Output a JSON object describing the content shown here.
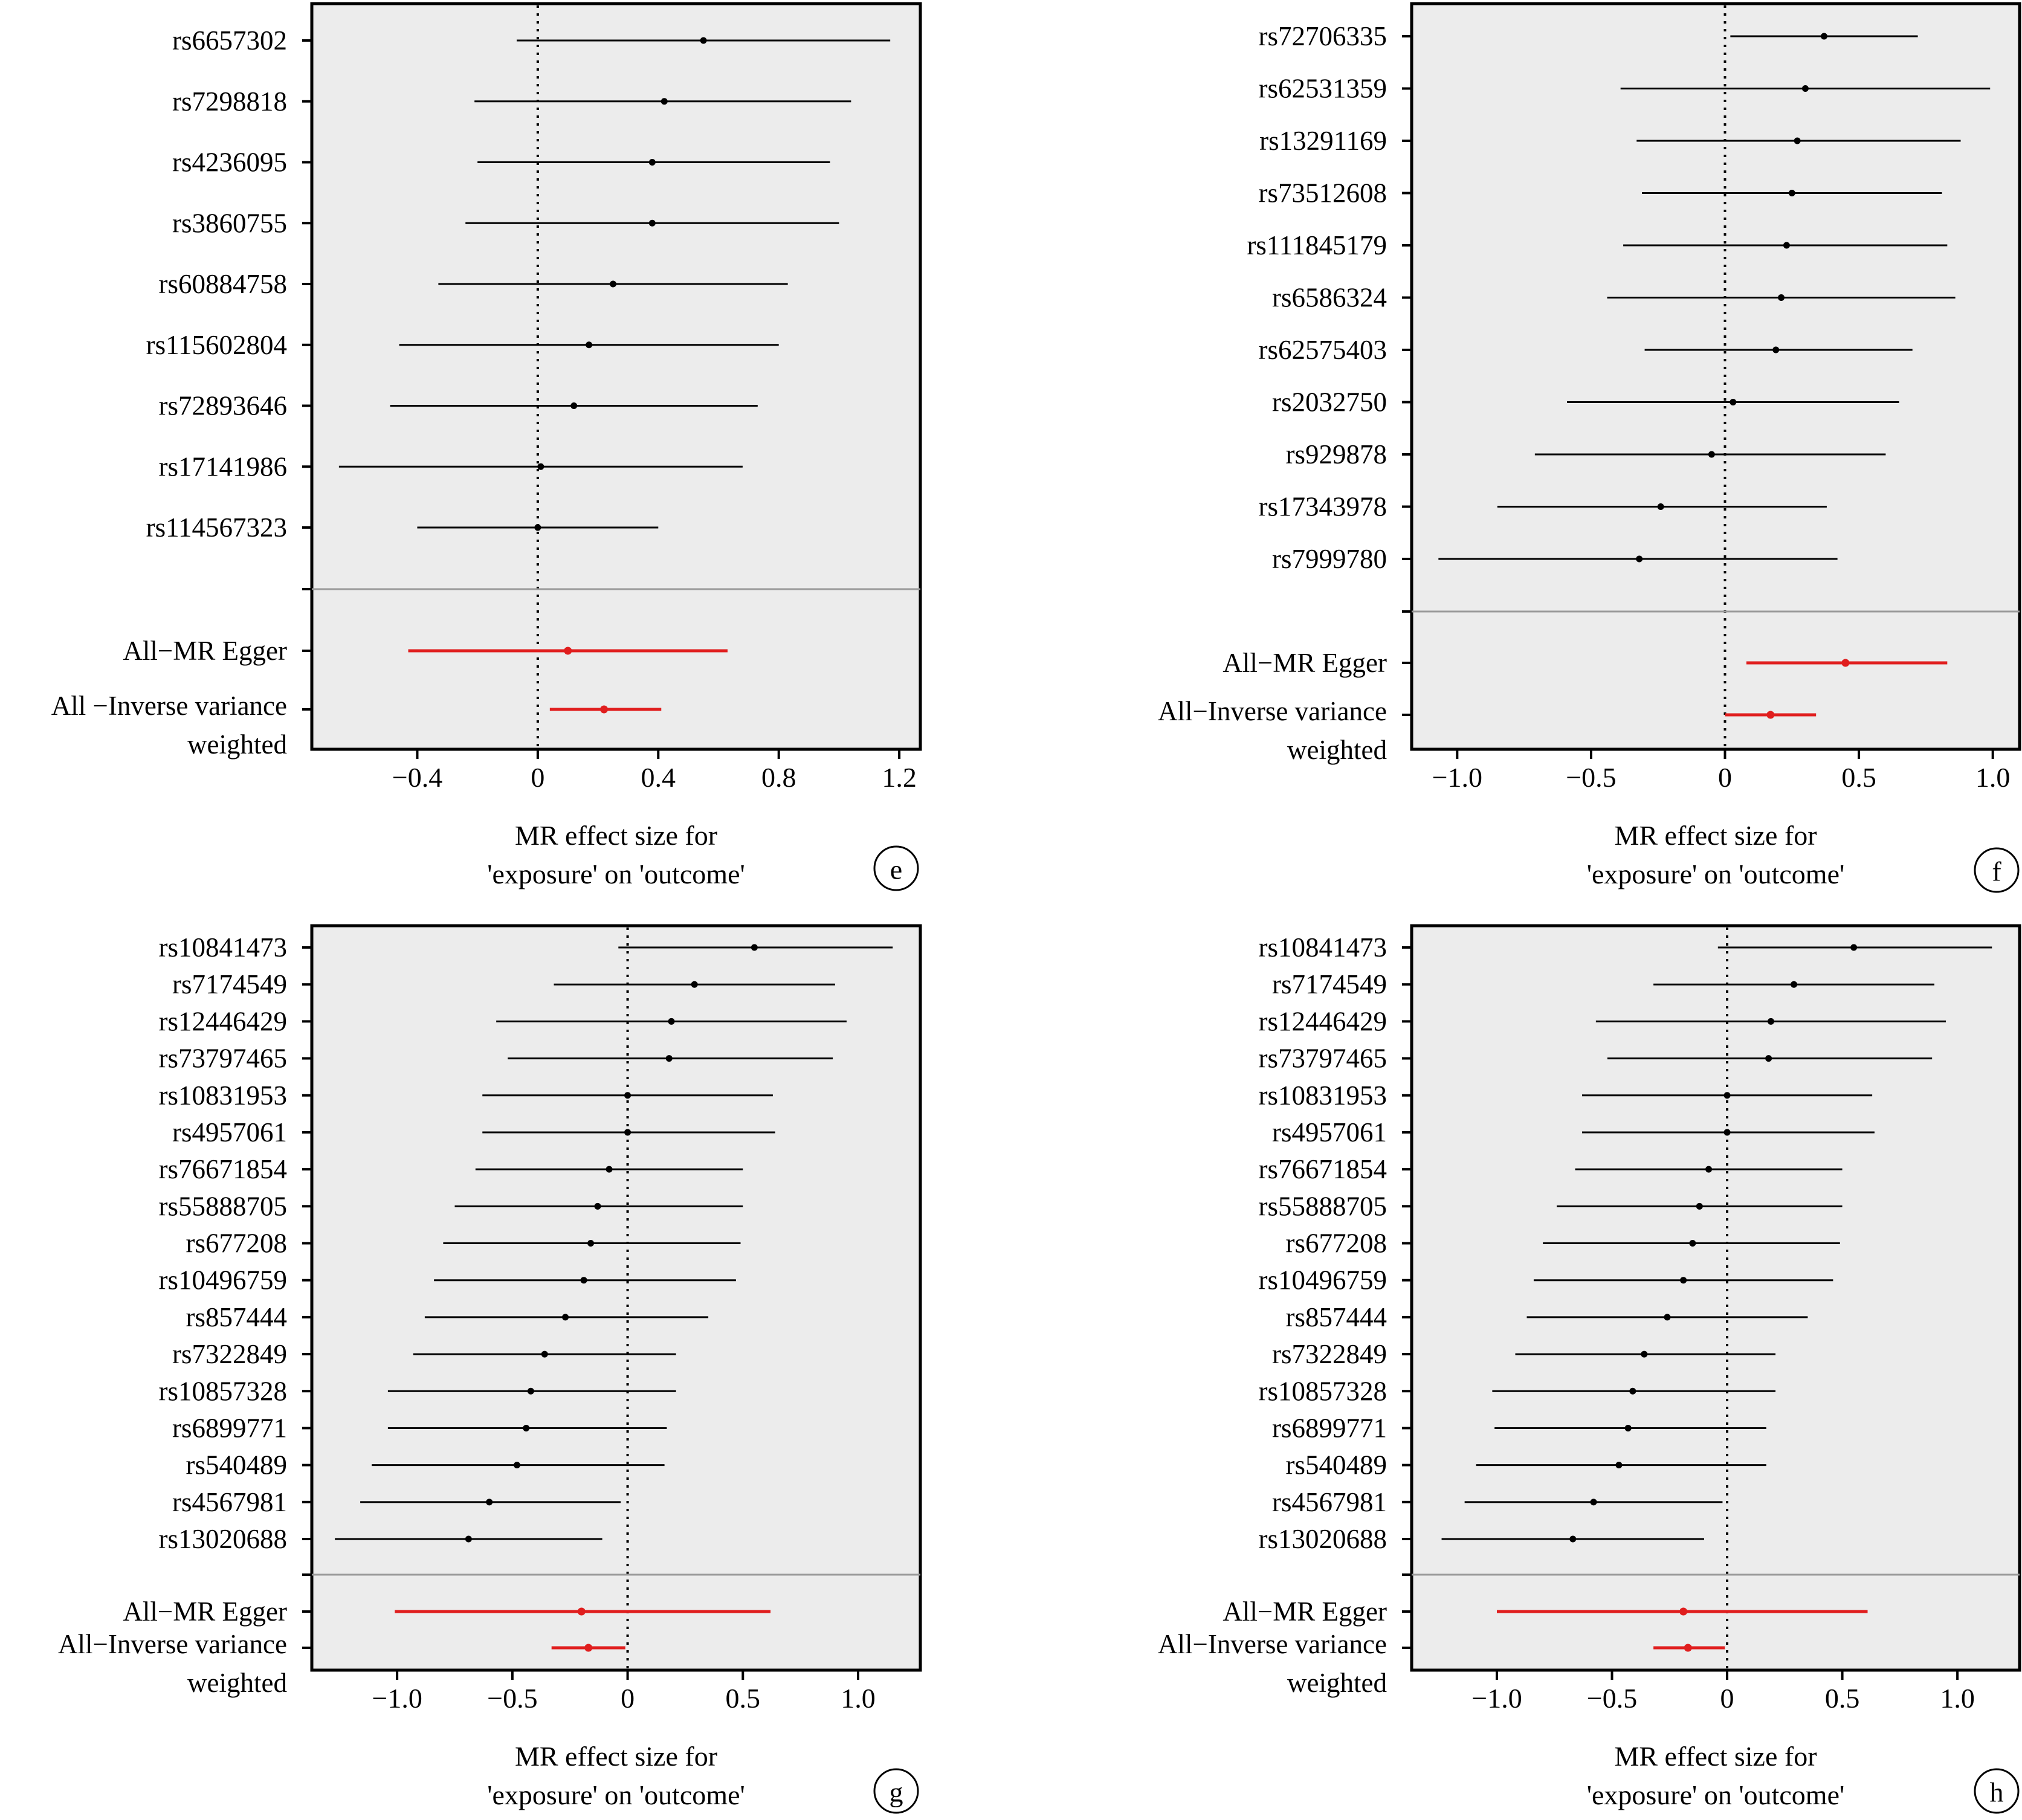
{
  "chart_data": [
    {
      "type": "forest",
      "panel_label": "e",
      "xlabel": [
        "MR effect size for",
        "'exposure' on 'outcome'"
      ],
      "xlim": [
        -0.75,
        1.27
      ],
      "xticks": [
        -0.4,
        0,
        0.4,
        0.8,
        1.2
      ],
      "xtick_labels": [
        "−0.4",
        "0",
        "0.4",
        "0.8",
        "1.2"
      ],
      "snps": [
        {
          "label": "rs6657302",
          "b": 0.55,
          "lo": -0.07,
          "hi": 1.17
        },
        {
          "label": "rs7298818",
          "b": 0.42,
          "lo": -0.21,
          "hi": 1.04
        },
        {
          "label": "rs4236095",
          "b": 0.38,
          "lo": -0.2,
          "hi": 0.97
        },
        {
          "label": "rs3860755",
          "b": 0.38,
          "lo": -0.24,
          "hi": 1.0
        },
        {
          "label": "rs60884758",
          "b": 0.25,
          "lo": -0.33,
          "hi": 0.83
        },
        {
          "label": "rs115602804",
          "b": 0.17,
          "lo": -0.46,
          "hi": 0.8
        },
        {
          "label": "rs72893646",
          "b": 0.12,
          "lo": -0.49,
          "hi": 0.73
        },
        {
          "label": "rs17141986",
          "b": 0.01,
          "lo": -0.66,
          "hi": 0.68
        },
        {
          "label": "rs114567323",
          "b": 0.0,
          "lo": -0.4,
          "hi": 0.4
        }
      ],
      "summary": [
        {
          "label": [
            "All−MR Egger"
          ],
          "b": 0.1,
          "lo": -0.43,
          "hi": 0.63
        },
        {
          "label": [
            "All −Inverse variance",
            "weighted"
          ],
          "b": 0.22,
          "lo": 0.04,
          "hi": 0.41
        }
      ],
      "colors": {
        "snp": "#000000",
        "summary": "#e01e1e",
        "panel_bg": "#ececec"
      }
    },
    {
      "type": "forest",
      "panel_label": "f",
      "xlabel": [
        "MR effect size for",
        "'exposure' on 'outcome'"
      ],
      "xlim": [
        -1.17,
        1.1
      ],
      "xticks": [
        -1.0,
        -0.5,
        0,
        0.5,
        1.0
      ],
      "xtick_labels": [
        "−1.0",
        "−0.5",
        "0",
        "0.5",
        "1.0"
      ],
      "snps": [
        {
          "label": "rs72706335",
          "b": 0.37,
          "lo": 0.02,
          "hi": 0.72
        },
        {
          "label": "rs62531359",
          "b": 0.3,
          "lo": -0.39,
          "hi": 0.99
        },
        {
          "label": "rs13291169",
          "b": 0.27,
          "lo": -0.33,
          "hi": 0.88
        },
        {
          "label": "rs73512608",
          "b": 0.25,
          "lo": -0.31,
          "hi": 0.81
        },
        {
          "label": "rs111845179",
          "b": 0.23,
          "lo": -0.38,
          "hi": 0.83
        },
        {
          "label": "rs6586324",
          "b": 0.21,
          "lo": -0.44,
          "hi": 0.86
        },
        {
          "label": "rs62575403",
          "b": 0.19,
          "lo": -0.3,
          "hi": 0.7
        },
        {
          "label": "rs2032750",
          "b": 0.03,
          "lo": -0.59,
          "hi": 0.65
        },
        {
          "label": "rs929878",
          "b": -0.05,
          "lo": -0.71,
          "hi": 0.6
        },
        {
          "label": "rs17343978",
          "b": -0.24,
          "lo": -0.85,
          "hi": 0.38
        },
        {
          "label": "rs7999780",
          "b": -0.32,
          "lo": -1.07,
          "hi": 0.42
        }
      ],
      "summary": [
        {
          "label": [
            "All−MR Egger"
          ],
          "b": 0.45,
          "lo": 0.08,
          "hi": 0.83
        },
        {
          "label": [
            "All−Inverse variance",
            "weighted"
          ],
          "b": 0.17,
          "lo": 0.0,
          "hi": 0.34
        }
      ],
      "colors": {
        "snp": "#000000",
        "summary": "#e01e1e",
        "panel_bg": "#ececec"
      }
    },
    {
      "type": "forest",
      "panel_label": "g",
      "xlabel": [
        "MR effect size for",
        "'exposure' on 'outcome'"
      ],
      "xlim": [
        -1.37,
        1.27
      ],
      "xticks": [
        -1.0,
        -0.5,
        0,
        0.5,
        1.0
      ],
      "xtick_labels": [
        "−1.0",
        "−0.5",
        "0",
        "0.5",
        "1.0"
      ],
      "snps": [
        {
          "label": "rs10841473",
          "b": 0.55,
          "lo": -0.04,
          "hi": 1.15
        },
        {
          "label": "rs7174549",
          "b": 0.29,
          "lo": -0.32,
          "hi": 0.9
        },
        {
          "label": "rs12446429",
          "b": 0.19,
          "lo": -0.57,
          "hi": 0.95
        },
        {
          "label": "rs73797465",
          "b": 0.18,
          "lo": -0.52,
          "hi": 0.89
        },
        {
          "label": "rs10831953",
          "b": 0.0,
          "lo": -0.63,
          "hi": 0.63
        },
        {
          "label": "rs4957061",
          "b": 0.0,
          "lo": -0.63,
          "hi": 0.64
        },
        {
          "label": "rs76671854",
          "b": -0.08,
          "lo": -0.66,
          "hi": 0.5
        },
        {
          "label": "rs55888705",
          "b": -0.13,
          "lo": -0.75,
          "hi": 0.5
        },
        {
          "label": "rs677208",
          "b": -0.16,
          "lo": -0.8,
          "hi": 0.49
        },
        {
          "label": "rs10496759",
          "b": -0.19,
          "lo": -0.84,
          "hi": 0.47
        },
        {
          "label": "rs857444",
          "b": -0.27,
          "lo": -0.88,
          "hi": 0.35
        },
        {
          "label": "rs7322849",
          "b": -0.36,
          "lo": -0.93,
          "hi": 0.21
        },
        {
          "label": "rs10857328",
          "b": -0.42,
          "lo": -1.04,
          "hi": 0.21
        },
        {
          "label": "rs6899771",
          "b": -0.44,
          "lo": -1.04,
          "hi": 0.17
        },
        {
          "label": "rs540489",
          "b": -0.48,
          "lo": -1.11,
          "hi": 0.16
        },
        {
          "label": "rs4567981",
          "b": -0.6,
          "lo": -1.16,
          "hi": -0.03
        },
        {
          "label": "rs13020688",
          "b": -0.69,
          "lo": -1.27,
          "hi": -0.11
        }
      ],
      "summary": [
        {
          "label": [
            "All−MR Egger"
          ],
          "b": -0.2,
          "lo": -1.01,
          "hi": 0.62
        },
        {
          "label": [
            "All−Inverse variance",
            "weighted"
          ],
          "b": -0.17,
          "lo": -0.33,
          "hi": -0.01
        }
      ],
      "colors": {
        "snp": "#000000",
        "summary": "#e01e1e",
        "panel_bg": "#ececec"
      }
    },
    {
      "type": "forest",
      "panel_label": "h",
      "xlabel": [
        "MR effect size for",
        "'exposure' on 'outcome'"
      ],
      "xlim": [
        -1.37,
        1.27
      ],
      "xticks": [
        -1.0,
        -0.5,
        0,
        0.5,
        1.0
      ],
      "xtick_labels": [
        "−1.0",
        "−0.5",
        "0",
        "0.5",
        "1.0"
      ],
      "snps": [
        {
          "label": "rs10841473",
          "b": 0.55,
          "lo": -0.04,
          "hi": 1.15
        },
        {
          "label": "rs7174549",
          "b": 0.29,
          "lo": -0.32,
          "hi": 0.9
        },
        {
          "label": "rs12446429",
          "b": 0.19,
          "lo": -0.57,
          "hi": 0.95
        },
        {
          "label": "rs73797465",
          "b": 0.18,
          "lo": -0.52,
          "hi": 0.89
        },
        {
          "label": "rs10831953",
          "b": 0.0,
          "lo": -0.63,
          "hi": 0.63
        },
        {
          "label": "rs4957061",
          "b": 0.0,
          "lo": -0.63,
          "hi": 0.64
        },
        {
          "label": "rs76671854",
          "b": -0.08,
          "lo": -0.66,
          "hi": 0.5
        },
        {
          "label": "rs55888705",
          "b": -0.12,
          "lo": -0.74,
          "hi": 0.5
        },
        {
          "label": "rs677208",
          "b": -0.15,
          "lo": -0.8,
          "hi": 0.49
        },
        {
          "label": "rs10496759",
          "b": -0.19,
          "lo": -0.84,
          "hi": 0.46
        },
        {
          "label": "rs857444",
          "b": -0.26,
          "lo": -0.87,
          "hi": 0.35
        },
        {
          "label": "rs7322849",
          "b": -0.36,
          "lo": -0.92,
          "hi": 0.21
        },
        {
          "label": "rs10857328",
          "b": -0.41,
          "lo": -1.02,
          "hi": 0.21
        },
        {
          "label": "rs6899771",
          "b": -0.43,
          "lo": -1.01,
          "hi": 0.17
        },
        {
          "label": "rs540489",
          "b": -0.47,
          "lo": -1.09,
          "hi": 0.17
        },
        {
          "label": "rs4567981",
          "b": -0.58,
          "lo": -1.14,
          "hi": -0.02
        },
        {
          "label": "rs13020688",
          "b": -0.67,
          "lo": -1.24,
          "hi": -0.1
        }
      ],
      "summary": [
        {
          "label": [
            "All−MR Egger"
          ],
          "b": -0.19,
          "lo": -1.0,
          "hi": 0.61
        },
        {
          "label": [
            "All−Inverse variance",
            "weighted"
          ],
          "b": -0.17,
          "lo": -0.32,
          "hi": -0.01
        }
      ],
      "colors": {
        "snp": "#000000",
        "summary": "#e01e1e",
        "panel_bg": "#ececec"
      }
    }
  ]
}
